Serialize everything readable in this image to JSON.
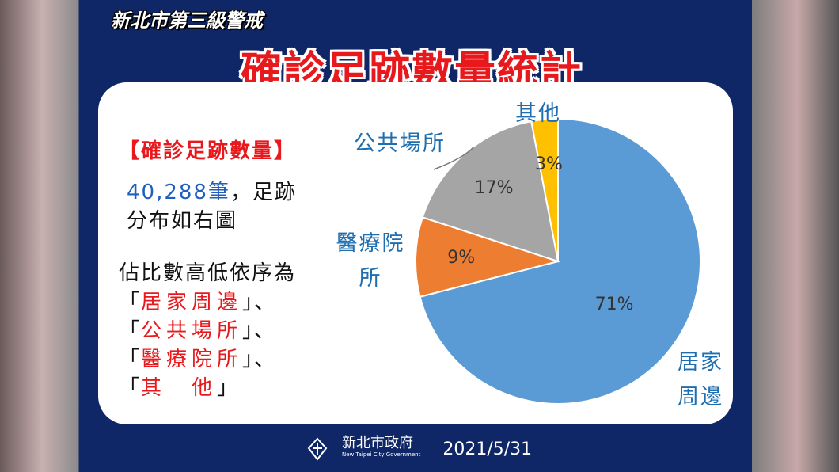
{
  "header": {
    "alert": "新北市第三級警戒",
    "title": "確診足跡數量統計"
  },
  "summary": {
    "heading": "【確診足跡數量】",
    "count": "40,288筆",
    "text_1": "，足跡",
    "text_2": "分布如右圖",
    "order_intro": "佔比數高低依序為",
    "order": [
      {
        "open": "「",
        "name": "居家周邊",
        "close": "」、"
      },
      {
        "open": "「",
        "name": "公共場所",
        "close": "」、"
      },
      {
        "open": "「",
        "name": "醫療院所",
        "close": "」、"
      },
      {
        "open": "「",
        "name": "其　他",
        "close": "」"
      }
    ]
  },
  "chart_data": {
    "type": "pie",
    "categories": [
      "居家周邊",
      "醫療院所",
      "公共場所",
      "其他"
    ],
    "values": [
      71,
      9,
      17,
      3
    ],
    "value_labels": [
      "71%",
      "9%",
      "17%",
      "3%"
    ],
    "colors": [
      "#5b9bd5",
      "#ed7d31",
      "#a5a5a5",
      "#ffc000"
    ]
  },
  "footer": {
    "org": "新北市政府",
    "org_en": "New Taipei City Government",
    "date": "2021/5/31"
  }
}
